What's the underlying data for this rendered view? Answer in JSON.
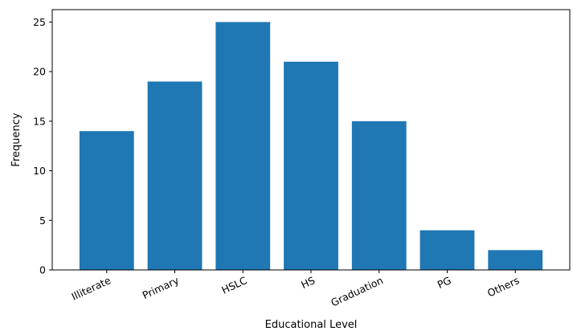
{
  "chart_data": {
    "type": "bar",
    "title": "",
    "xlabel": "Educational Level",
    "ylabel": "Frequency",
    "categories": [
      "Illiterate",
      "Primary",
      "HSLC",
      "HS",
      "Graduation",
      "PG",
      "Others"
    ],
    "values": [
      14,
      19,
      25,
      21,
      15,
      4,
      2
    ],
    "ylim": [
      0,
      26.25
    ],
    "yticks": [
      0,
      5,
      10,
      15,
      20,
      25
    ],
    "bar_color": "#1f77b4",
    "grid": false,
    "legend": "none"
  }
}
